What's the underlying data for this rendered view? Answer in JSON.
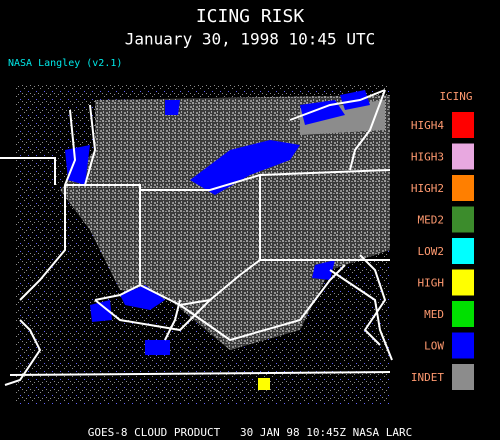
{
  "header": {
    "title": "ICING RISK",
    "subtitle": "January 30, 1998 10:45 UTC",
    "source": "NASA Langley (v2.1)"
  },
  "legend": {
    "title": "ICING",
    "items": [
      {
        "label": "HIGH4",
        "color": "#ff0000"
      },
      {
        "label": "HIGH3",
        "color": "#e8a8e0"
      },
      {
        "label": "HIGH2",
        "color": "#ff7f00"
      },
      {
        "label": "MED2",
        "color": "#3c8c2c"
      },
      {
        "label": "LOW2",
        "color": "#00ffff"
      },
      {
        "label": "HIGH",
        "color": "#ffff00"
      },
      {
        "label": "MED",
        "color": "#00e000"
      },
      {
        "label": "LOW",
        "color": "#0000ff"
      },
      {
        "label": "INDET",
        "color": "#8c8c8c"
      }
    ]
  },
  "footer": "GOES-8 CLOUD PRODUCT   30 JAN 98 10:45Z NASA LARC"
}
